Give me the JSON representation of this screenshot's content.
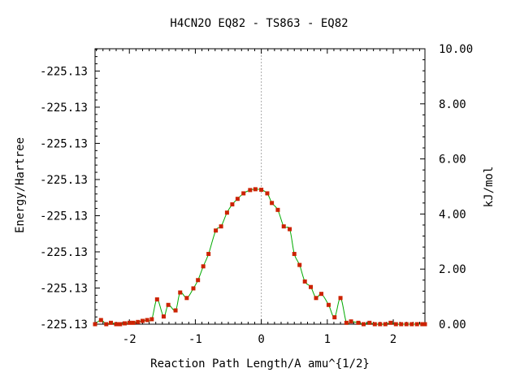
{
  "chart_data": {
    "type": "line",
    "title": "H4CN2O   EQ82 - TS863 - EQ82",
    "xlabel": "Reaction Path Length/A amu^{1/2}",
    "ylabel_left": "Energy/Hartree",
    "ylabel_right": "kJ/mol",
    "xlim": [
      -2.52,
      2.48
    ],
    "ylim_right": [
      0,
      10
    ],
    "x_ticks": [
      {
        "value": -2,
        "label": "-2"
      },
      {
        "value": -1,
        "label": "-1"
      },
      {
        "value": 0,
        "label": "0"
      },
      {
        "value": 1,
        "label": "1"
      },
      {
        "value": 2,
        "label": "2"
      }
    ],
    "left_ticks": [
      {
        "value": 0.0,
        "label": "-225.13"
      },
      {
        "value": 1.313,
        "label": "-225.13"
      },
      {
        "value": 2.626,
        "label": "-225.13"
      },
      {
        "value": 3.939,
        "label": "-225.13"
      },
      {
        "value": 5.252,
        "label": "-225.13"
      },
      {
        "value": 6.565,
        "label": "-225.13"
      },
      {
        "value": 7.878,
        "label": "-225.13"
      },
      {
        "value": 9.191,
        "label": "-225.13"
      }
    ],
    "right_ticks": [
      {
        "value": 0,
        "label": "0.00"
      },
      {
        "value": 2,
        "label": "2.00"
      },
      {
        "value": 4,
        "label": "4.00"
      },
      {
        "value": 6,
        "label": "6.00"
      },
      {
        "value": 8,
        "label": "8.00"
      },
      {
        "value": 10,
        "label": "10.00"
      }
    ],
    "ts_marker_x": 0,
    "colors": {
      "line": "#00aa00",
      "points": "#cc2200",
      "ts_line": "#aaaaaa"
    },
    "series": [
      {
        "values_unit": "kJ/mol",
        "points": [
          [
            -2.52,
            0.0
          ],
          [
            -2.43,
            0.15
          ],
          [
            -2.35,
            0.0
          ],
          [
            -2.28,
            0.05
          ],
          [
            -2.2,
            0.0
          ],
          [
            -2.14,
            0.0
          ],
          [
            -2.07,
            0.03
          ],
          [
            -2.0,
            0.05
          ],
          [
            -1.94,
            0.05
          ],
          [
            -1.87,
            0.08
          ],
          [
            -1.8,
            0.12
          ],
          [
            -1.73,
            0.15
          ],
          [
            -1.66,
            0.18
          ],
          [
            -1.58,
            0.9
          ],
          [
            -1.48,
            0.28
          ],
          [
            -1.41,
            0.7
          ],
          [
            -1.3,
            0.5
          ],
          [
            -1.23,
            1.15
          ],
          [
            -1.13,
            0.95
          ],
          [
            -1.03,
            1.3
          ],
          [
            -0.96,
            1.6
          ],
          [
            -0.88,
            2.1
          ],
          [
            -0.8,
            2.55
          ],
          [
            -0.69,
            3.4
          ],
          [
            -0.61,
            3.55
          ],
          [
            -0.52,
            4.05
          ],
          [
            -0.44,
            4.35
          ],
          [
            -0.36,
            4.55
          ],
          [
            -0.27,
            4.75
          ],
          [
            -0.17,
            4.87
          ],
          [
            -0.09,
            4.9
          ],
          [
            0.0,
            4.88
          ],
          [
            0.09,
            4.75
          ],
          [
            0.16,
            4.4
          ],
          [
            0.25,
            4.15
          ],
          [
            0.34,
            3.55
          ],
          [
            0.43,
            3.45
          ],
          [
            0.5,
            2.55
          ],
          [
            0.58,
            2.15
          ],
          [
            0.66,
            1.55
          ],
          [
            0.75,
            1.35
          ],
          [
            0.83,
            0.95
          ],
          [
            0.91,
            1.1
          ],
          [
            1.02,
            0.7
          ],
          [
            1.11,
            0.25
          ],
          [
            1.2,
            0.95
          ],
          [
            1.29,
            0.05
          ],
          [
            1.36,
            0.1
          ],
          [
            1.47,
            0.05
          ],
          [
            1.55,
            0.0
          ],
          [
            1.64,
            0.05
          ],
          [
            1.72,
            0.0
          ],
          [
            1.8,
            0.0
          ],
          [
            1.88,
            0.0
          ],
          [
            1.96,
            0.05
          ],
          [
            2.04,
            0.0
          ],
          [
            2.12,
            0.0
          ],
          [
            2.2,
            0.0
          ],
          [
            2.28,
            0.0
          ],
          [
            2.36,
            0.0
          ],
          [
            2.44,
            0.0
          ],
          [
            2.48,
            0.0
          ]
        ]
      }
    ]
  }
}
